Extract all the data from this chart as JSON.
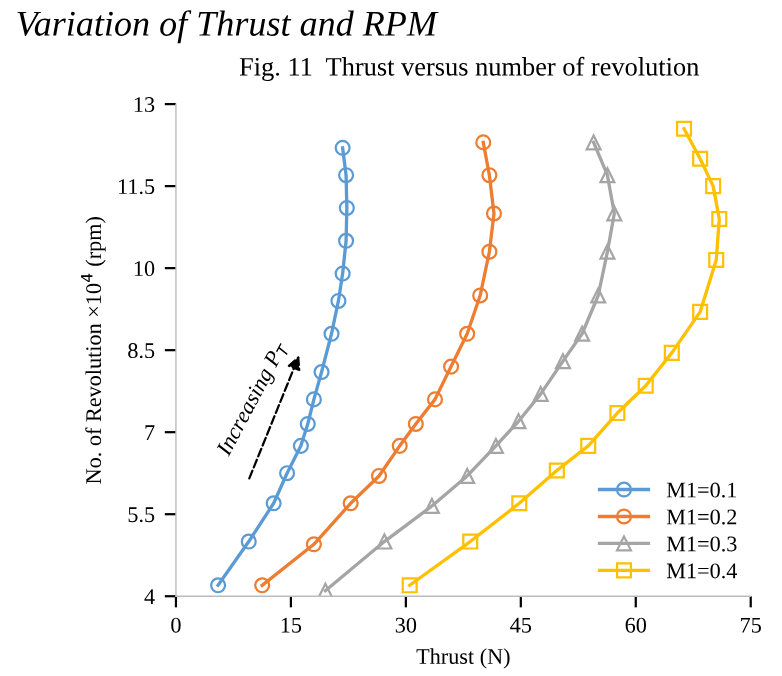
{
  "chart_data": {
    "type": "line",
    "title": "Variation of Thrust and RPM",
    "subtitle": "Fig. 11  Thrust versus number of revolution",
    "xlabel": "Thrust (N)",
    "ylabel": "No. of Revolution ×10$^{4}$ (rpm)",
    "annotations": [
      "Increasing P$_{T}$"
    ],
    "xlim": [
      0,
      75
    ],
    "xticks": [
      0,
      15,
      30,
      45,
      60,
      75
    ],
    "ylim": [
      4,
      13
    ],
    "yticks": [
      4,
      5.5,
      7,
      8.5,
      10,
      11.5,
      13
    ],
    "grid": false,
    "legend": "bottom right",
    "series": [
      {
        "name": "M1=0.1",
        "color": "#5b9bd5",
        "marker": "circle",
        "x": [
          5.5,
          9.5,
          12.75,
          14.5,
          16.3,
          17.2,
          18,
          19,
          20.3,
          21.2,
          21.75,
          22.2,
          22.3,
          22.2,
          21.75
        ],
        "values": [
          4.2,
          5.0,
          5.7,
          6.25,
          6.75,
          7.15,
          7.6,
          8.1,
          8.8,
          9.4,
          9.9,
          10.5,
          11.1,
          11.7,
          12.2
        ]
      },
      {
        "name": "M1=0.2",
        "color": "#ed7d31",
        "marker": "circle",
        "x": [
          11.25,
          18,
          22.8,
          26.5,
          29.2,
          31.3,
          33.8,
          35.9,
          38,
          39.7,
          40.9,
          41.5,
          40.9,
          40.1
        ],
        "values": [
          4.2,
          4.95,
          5.7,
          6.2,
          6.75,
          7.15,
          7.6,
          8.2,
          8.8,
          9.5,
          10.3,
          11.0,
          11.7,
          12.3
        ]
      },
      {
        "name": "M1=0.3",
        "color": "#a5a5a5",
        "marker": "triangle",
        "x": [
          19.5,
          27.2,
          33.4,
          38,
          41.75,
          44.7,
          47.6,
          50.5,
          53,
          55.1,
          56.3,
          57.2,
          56.3,
          54.5
        ],
        "values": [
          4.1,
          5.0,
          5.65,
          6.2,
          6.75,
          7.2,
          7.7,
          8.3,
          8.8,
          9.5,
          10.3,
          11.0,
          11.7,
          12.3
        ]
      },
      {
        "name": "M1=0.4",
        "color": "#ffc000",
        "marker": "square",
        "x": [
          30.5,
          38.4,
          44.8,
          49.7,
          53.8,
          57.6,
          61.3,
          64.7,
          68.4,
          70.5,
          70.9,
          70.1,
          68.4,
          66.3
        ],
        "values": [
          4.2,
          5.0,
          5.7,
          6.3,
          6.75,
          7.35,
          7.85,
          8.45,
          9.2,
          10.15,
          10.9,
          11.5,
          12.0,
          12.55
        ]
      }
    ]
  }
}
